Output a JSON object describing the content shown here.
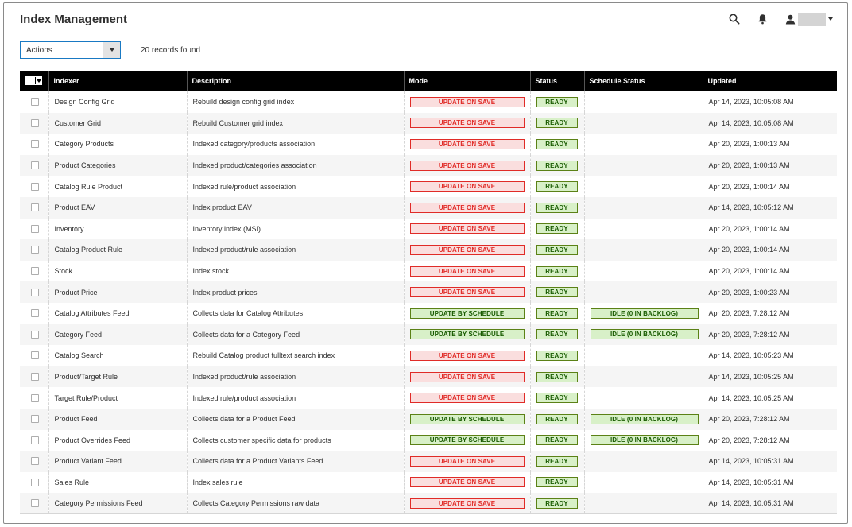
{
  "page": {
    "title": "Index Management"
  },
  "header": {
    "icons": [
      "search-icon",
      "bell-icon",
      "user-icon"
    ]
  },
  "toolbar": {
    "actions_label": "Actions",
    "records_found": "20 records found"
  },
  "columns": [
    "Indexer",
    "Description",
    "Mode",
    "Status",
    "Schedule Status",
    "Updated"
  ],
  "rows": [
    {
      "indexer": "Design Config Grid",
      "description": "Rebuild design config grid index",
      "mode": "UPDATE ON SAVE",
      "mode_type": "save",
      "status": "READY",
      "schedule_status": "",
      "updated": "Apr 14, 2023, 10:05:08 AM"
    },
    {
      "indexer": "Customer Grid",
      "description": "Rebuild Customer grid index",
      "mode": "UPDATE ON SAVE",
      "mode_type": "save",
      "status": "READY",
      "schedule_status": "",
      "updated": "Apr 14, 2023, 10:05:08 AM"
    },
    {
      "indexer": "Category Products",
      "description": "Indexed category/products association",
      "mode": "UPDATE ON SAVE",
      "mode_type": "save",
      "status": "READY",
      "schedule_status": "",
      "updated": "Apr 20, 2023, 1:00:13 AM"
    },
    {
      "indexer": "Product Categories",
      "description": "Indexed product/categories association",
      "mode": "UPDATE ON SAVE",
      "mode_type": "save",
      "status": "READY",
      "schedule_status": "",
      "updated": "Apr 20, 2023, 1:00:13 AM"
    },
    {
      "indexer": "Catalog Rule Product",
      "description": "Indexed rule/product association",
      "mode": "UPDATE ON SAVE",
      "mode_type": "save",
      "status": "READY",
      "schedule_status": "",
      "updated": "Apr 20, 2023, 1:00:14 AM"
    },
    {
      "indexer": "Product EAV",
      "description": "Index product EAV",
      "mode": "UPDATE ON SAVE",
      "mode_type": "save",
      "status": "READY",
      "schedule_status": "",
      "updated": "Apr 14, 2023, 10:05:12 AM"
    },
    {
      "indexer": "Inventory",
      "description": "Inventory index (MSI)",
      "mode": "UPDATE ON SAVE",
      "mode_type": "save",
      "status": "READY",
      "schedule_status": "",
      "updated": "Apr 20, 2023, 1:00:14 AM"
    },
    {
      "indexer": "Catalog Product Rule",
      "description": "Indexed product/rule association",
      "mode": "UPDATE ON SAVE",
      "mode_type": "save",
      "status": "READY",
      "schedule_status": "",
      "updated": "Apr 20, 2023, 1:00:14 AM"
    },
    {
      "indexer": "Stock",
      "description": "Index stock",
      "mode": "UPDATE ON SAVE",
      "mode_type": "save",
      "status": "READY",
      "schedule_status": "",
      "updated": "Apr 20, 2023, 1:00:14 AM"
    },
    {
      "indexer": "Product Price",
      "description": "Index product prices",
      "mode": "UPDATE ON SAVE",
      "mode_type": "save",
      "status": "READY",
      "schedule_status": "",
      "updated": "Apr 20, 2023, 1:00:23 AM"
    },
    {
      "indexer": "Catalog Attributes Feed",
      "description": "Collects data for Catalog Attributes",
      "mode": "UPDATE BY SCHEDULE",
      "mode_type": "schedule",
      "status": "READY",
      "schedule_status": "IDLE (0 IN BACKLOG)",
      "updated": "Apr 20, 2023, 7:28:12 AM"
    },
    {
      "indexer": "Category Feed",
      "description": "Collects data for a Category Feed",
      "mode": "UPDATE BY SCHEDULE",
      "mode_type": "schedule",
      "status": "READY",
      "schedule_status": "IDLE (0 IN BACKLOG)",
      "updated": "Apr 20, 2023, 7:28:12 AM"
    },
    {
      "indexer": "Catalog Search",
      "description": "Rebuild Catalog product fulltext search index",
      "mode": "UPDATE ON SAVE",
      "mode_type": "save",
      "status": "READY",
      "schedule_status": "",
      "updated": "Apr 14, 2023, 10:05:23 AM"
    },
    {
      "indexer": "Product/Target Rule",
      "description": "Indexed product/rule association",
      "mode": "UPDATE ON SAVE",
      "mode_type": "save",
      "status": "READY",
      "schedule_status": "",
      "updated": "Apr 14, 2023, 10:05:25 AM"
    },
    {
      "indexer": "Target Rule/Product",
      "description": "Indexed rule/product association",
      "mode": "UPDATE ON SAVE",
      "mode_type": "save",
      "status": "READY",
      "schedule_status": "",
      "updated": "Apr 14, 2023, 10:05:25 AM"
    },
    {
      "indexer": "Product Feed",
      "description": "Collects data for a Product Feed",
      "mode": "UPDATE BY SCHEDULE",
      "mode_type": "schedule",
      "status": "READY",
      "schedule_status": "IDLE (0 IN BACKLOG)",
      "updated": "Apr 20, 2023, 7:28:12 AM"
    },
    {
      "indexer": "Product Overrides Feed",
      "description": "Collects customer specific data for products",
      "mode": "UPDATE BY SCHEDULE",
      "mode_type": "schedule",
      "status": "READY",
      "schedule_status": "IDLE (0 IN BACKLOG)",
      "updated": "Apr 20, 2023, 7:28:12 AM"
    },
    {
      "indexer": "Product Variant Feed",
      "description": "Collects data for a Product Variants Feed",
      "mode": "UPDATE ON SAVE",
      "mode_type": "save",
      "status": "READY",
      "schedule_status": "",
      "updated": "Apr 14, 2023, 10:05:31 AM"
    },
    {
      "indexer": "Sales Rule",
      "description": "Index sales rule",
      "mode": "UPDATE ON SAVE",
      "mode_type": "save",
      "status": "READY",
      "schedule_status": "",
      "updated": "Apr 14, 2023, 10:05:31 AM"
    },
    {
      "indexer": "Category Permissions Feed",
      "description": "Collects Category Permissions raw data",
      "mode": "UPDATE ON SAVE",
      "mode_type": "save",
      "status": "READY",
      "schedule_status": "",
      "updated": "Apr 14, 2023, 10:05:31 AM"
    }
  ],
  "colors": {
    "save_bg": "#fadede",
    "save_border": "#e02b27",
    "schedule_bg": "#d8f0c8",
    "schedule_border": "#5b8116",
    "header_bg": "#000000",
    "accent": "#1979c3"
  }
}
